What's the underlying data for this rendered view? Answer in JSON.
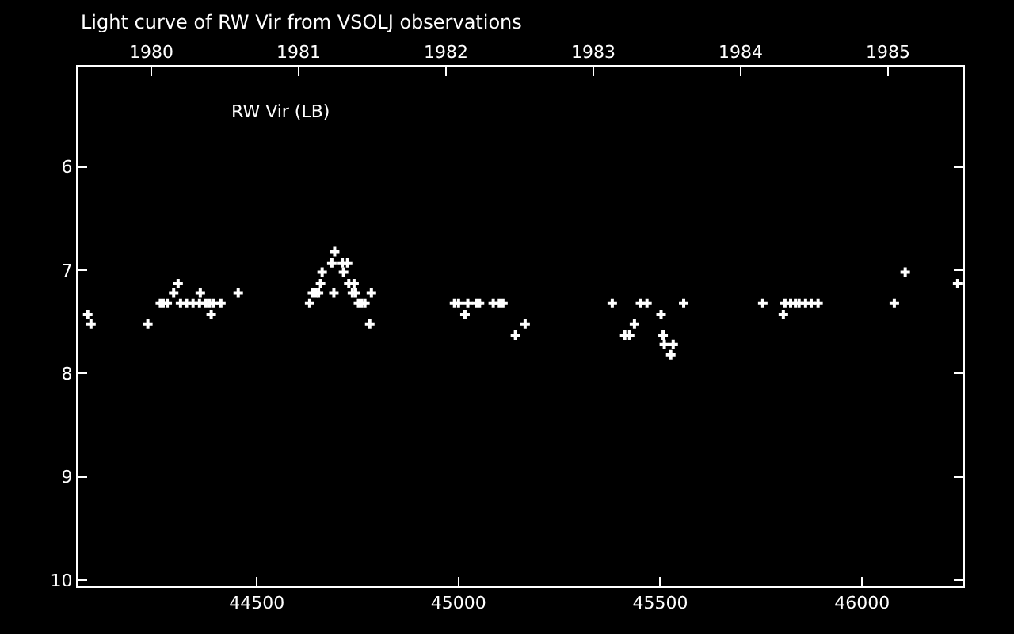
{
  "chart_data": {
    "type": "scatter",
    "title": "Light curve of RW Vir from VSOLJ observations",
    "annotations": [
      "RW Vir (LB)"
    ],
    "x": [
      44081,
      44089,
      44230,
      44261,
      44268,
      44278,
      44294,
      44305,
      44311,
      44326,
      44342,
      44358,
      44374,
      44383,
      44393,
      44360,
      44387,
      44411,
      44454,
      44631,
      44638,
      44646,
      44653,
      44658,
      44662,
      44686,
      44693,
      44691,
      44715,
      44712,
      44725,
      44728,
      44741,
      44737,
      44745,
      44752,
      44760,
      44768,
      44784,
      44780,
      44990,
      45000,
      45023,
      45016,
      45045,
      45052,
      45086,
      45101,
      45110,
      45165,
      45141,
      45381,
      45451,
      45467,
      45436,
      45412,
      45424,
      45502,
      45507,
      45510,
      45532,
      45526,
      45558,
      45754,
      45805,
      45809,
      45823,
      45835,
      45844,
      45860,
      45874,
      45891,
      46080,
      46107,
      46237
    ],
    "values": [
      7.43,
      7.52,
      7.52,
      7.32,
      7.32,
      7.32,
      7.22,
      7.13,
      7.32,
      7.32,
      7.32,
      7.32,
      7.32,
      7.32,
      7.32,
      7.22,
      7.43,
      7.32,
      7.22,
      7.32,
      7.22,
      7.22,
      7.22,
      7.13,
      7.02,
      6.93,
      6.82,
      7.22,
      7.02,
      6.93,
      6.93,
      7.13,
      7.13,
      7.22,
      7.22,
      7.32,
      7.32,
      7.32,
      7.22,
      7.52,
      7.32,
      7.32,
      7.32,
      7.43,
      7.32,
      7.32,
      7.32,
      7.32,
      7.32,
      7.52,
      7.63,
      7.32,
      7.32,
      7.32,
      7.52,
      7.63,
      7.63,
      7.43,
      7.63,
      7.72,
      7.72,
      7.82,
      7.32,
      7.32,
      7.43,
      7.32,
      7.32,
      7.32,
      7.32,
      7.32,
      7.32,
      7.32,
      7.32,
      7.02,
      7.13
    ],
    "color": "#ffffff",
    "marker": "cross",
    "grid": false,
    "xlim": [
      44056,
      46251
    ],
    "xticks": [
      44500,
      45000,
      45500,
      46000
    ],
    "ylim": [
      10.06,
      5.03
    ],
    "yticks": [
      6,
      7,
      8,
      9,
      10
    ],
    "x2lim": [
      1979.5,
      1985.51
    ],
    "x2ticks": [
      1980,
      1981,
      1982,
      1983,
      1984,
      1985
    ]
  }
}
